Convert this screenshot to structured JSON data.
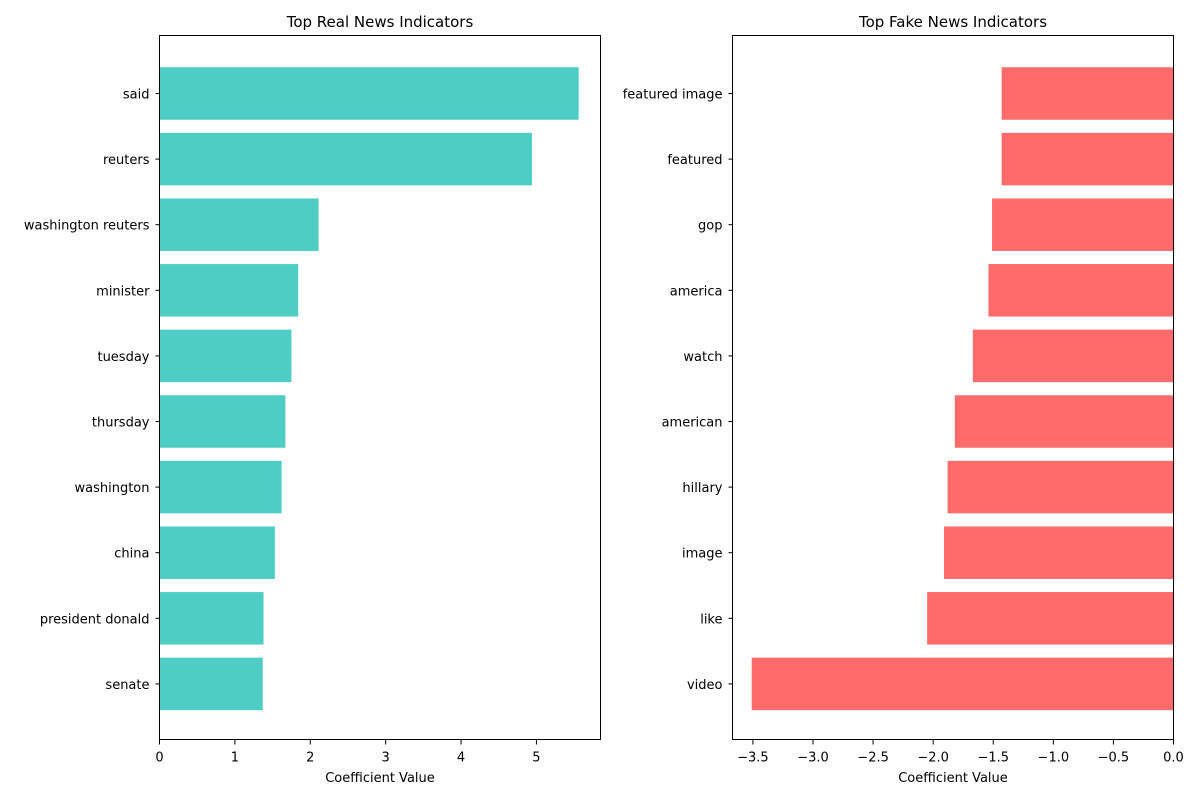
{
  "chart_data": [
    {
      "type": "bar",
      "orientation": "horizontal",
      "title": "Top Real News Indicators",
      "xlabel": "Coefficient Value",
      "ylabel": "",
      "xlim": [
        0,
        5.85
      ],
      "xticks": [
        0,
        1,
        2,
        3,
        4,
        5
      ],
      "xtick_labels": [
        "0",
        "1",
        "2",
        "3",
        "4",
        "5"
      ],
      "color": "#4ecdc4",
      "categories": [
        "said",
        "reuters",
        "washington reuters",
        "minister",
        "tuesday",
        "thursday",
        "washington",
        "china",
        "president donald",
        "senate"
      ],
      "values": [
        5.56,
        4.94,
        2.11,
        1.84,
        1.75,
        1.67,
        1.62,
        1.53,
        1.38,
        1.37
      ],
      "grid": false
    },
    {
      "type": "bar",
      "orientation": "horizontal",
      "title": "Top Fake News Indicators",
      "xlabel": "Coefficient Value",
      "ylabel": "",
      "xlim": [
        -3.67,
        0.0
      ],
      "xticks": [
        -3.5,
        -3.0,
        -2.5,
        -2.0,
        -1.5,
        -1.0,
        -0.5,
        0.0
      ],
      "xtick_labels": [
        "−3.5",
        "−3.0",
        "−2.5",
        "−2.0",
        "−1.5",
        "−1.0",
        "−0.5",
        "0.0"
      ],
      "color": "#ff6b6b",
      "categories": [
        "featured image",
        "featured",
        "gop",
        "america",
        "watch",
        "american",
        "hillary",
        "image",
        "like",
        "video"
      ],
      "values": [
        -1.43,
        -1.43,
        -1.51,
        -1.54,
        -1.67,
        -1.82,
        -1.88,
        -1.91,
        -2.05,
        -3.51
      ],
      "grid": false
    }
  ]
}
